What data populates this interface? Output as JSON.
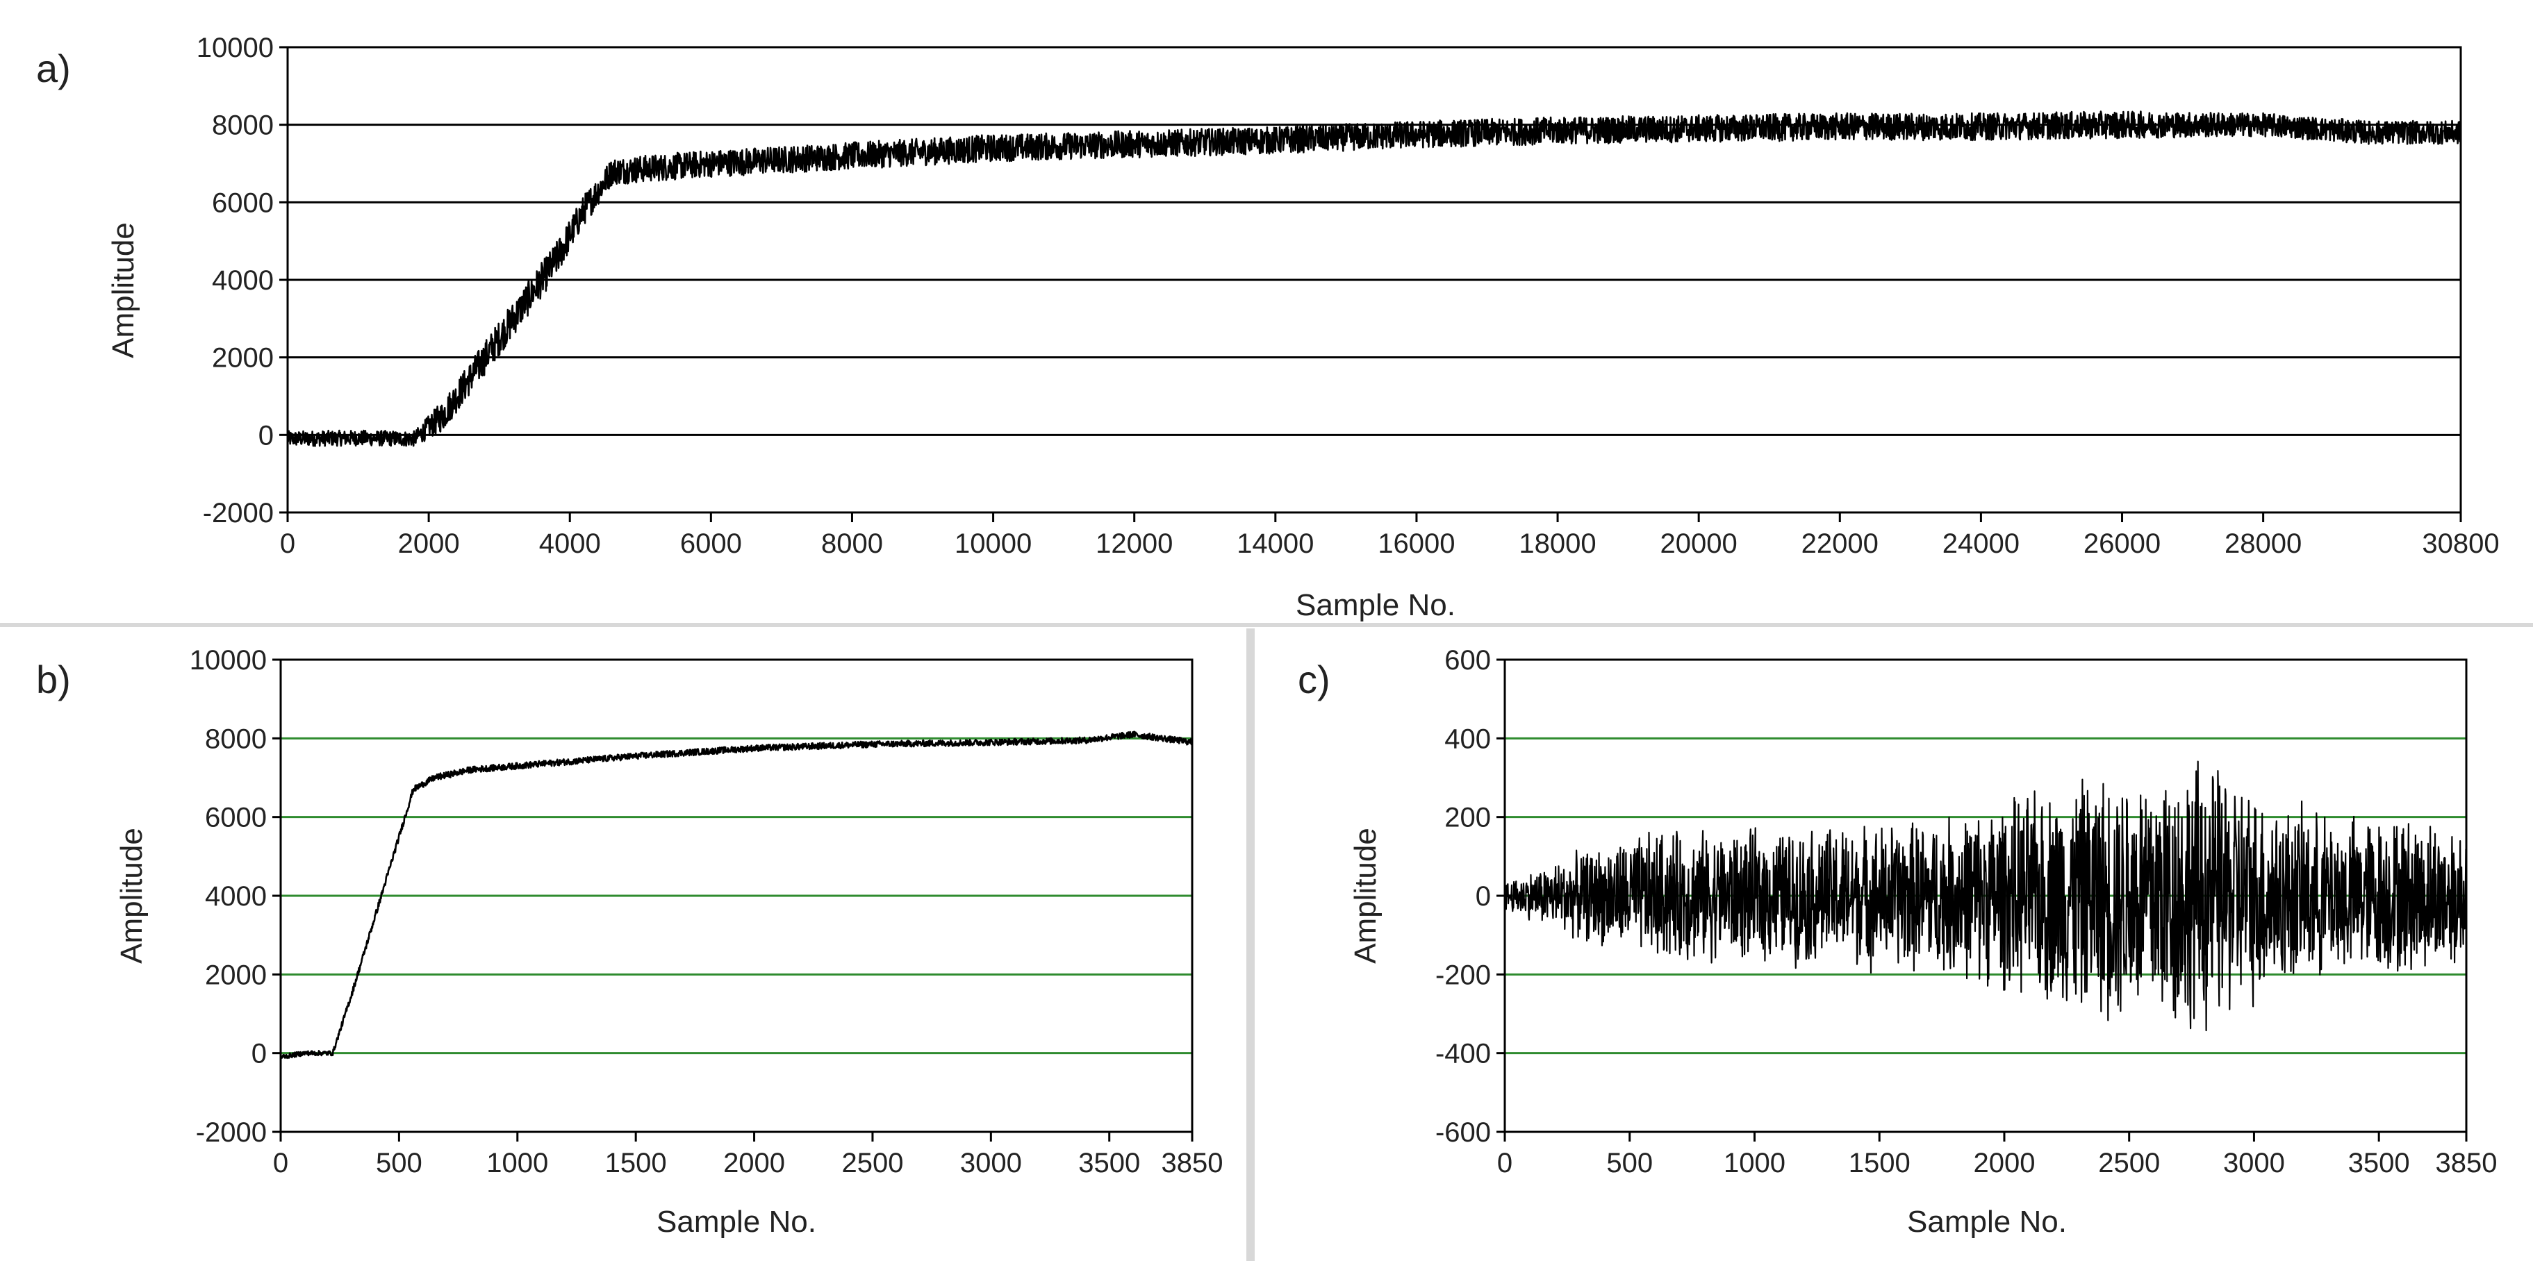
{
  "chart_data": [
    {
      "panel_label": "a)",
      "type": "line",
      "xlabel": "Sample No.",
      "ylabel": "Amplitude",
      "xlim": [
        0,
        30800
      ],
      "ylim": [
        -2000,
        10000
      ],
      "x_ticks": [
        0,
        2000,
        4000,
        6000,
        8000,
        10000,
        12000,
        14000,
        16000,
        18000,
        20000,
        22000,
        24000,
        26000,
        28000,
        30800
      ],
      "y_ticks": [
        -2000,
        0,
        2000,
        4000,
        6000,
        8000,
        10000
      ],
      "grid": "horizontal",
      "grid_color": "#000000",
      "line_color": "#000000",
      "series": [
        {
          "x": [
            0,
            1000,
            1800,
            2200,
            3000,
            3800,
            4200,
            4600,
            6000,
            8000,
            10000,
            12000,
            14000,
            16000,
            18000,
            20000,
            22000,
            24000,
            26000,
            28000,
            29500,
            30800
          ],
          "y": [
            -100,
            -80,
            -100,
            500,
            2500,
            4500,
            5800,
            6800,
            7000,
            7200,
            7400,
            7500,
            7600,
            7750,
            7850,
            7900,
            7950,
            7950,
            8000,
            8000,
            7800,
            7800
          ],
          "noise_amplitude": [
            200,
            200,
            200,
            400,
            450,
            450,
            400,
            350,
            350,
            350,
            350,
            350,
            350,
            350,
            350,
            350,
            350,
            350,
            350,
            300,
            300,
            300
          ]
        }
      ]
    },
    {
      "panel_label": "b)",
      "type": "line",
      "xlabel": "Sample No.",
      "ylabel": "Amplitude",
      "xlim": [
        0,
        3850
      ],
      "ylim": [
        -2000,
        10000
      ],
      "x_ticks": [
        0,
        500,
        1000,
        1500,
        2000,
        2500,
        3000,
        3500,
        3850
      ],
      "y_ticks": [
        -2000,
        0,
        2000,
        4000,
        6000,
        8000,
        10000
      ],
      "grid": "horizontal",
      "grid_color": "#2e8b2e",
      "line_color": "#000000",
      "series": [
        {
          "x": [
            0,
            100,
            220,
            300,
            400,
            500,
            560,
            650,
            800,
            1000,
            1500,
            2000,
            2500,
            3000,
            3400,
            3600,
            3850
          ],
          "y": [
            -100,
            0,
            0,
            1500,
            3500,
            5500,
            6700,
            7000,
            7200,
            7300,
            7550,
            7750,
            7850,
            7900,
            7950,
            8100,
            7900
          ],
          "noise_amplitude": [
            60,
            60,
            60,
            80,
            80,
            80,
            80,
            80,
            80,
            80,
            80,
            80,
            80,
            80,
            80,
            80,
            80
          ]
        }
      ]
    },
    {
      "panel_label": "c)",
      "type": "line",
      "xlabel": "Sample No.",
      "ylabel": "Amplitude",
      "xlim": [
        0,
        3850
      ],
      "ylim": [
        -600,
        600
      ],
      "x_ticks": [
        0,
        500,
        1000,
        1500,
        2000,
        2500,
        3000,
        3500,
        3850
      ],
      "y_ticks": [
        -600,
        -400,
        -200,
        0,
        200,
        400,
        600
      ],
      "grid": "horizontal",
      "grid_color": "#2e8b2e",
      "line_color": "#000000",
      "series": [
        {
          "x": [
            0,
            300,
            600,
            1000,
            1500,
            1800,
            2000,
            2300,
            2600,
            2800,
            2950,
            3100,
            3300,
            3600,
            3850
          ],
          "envelope": [
            40,
            120,
            180,
            180,
            200,
            220,
            260,
            320,
            370,
            380,
            320,
            260,
            220,
            220,
            200
          ]
        }
      ]
    }
  ]
}
